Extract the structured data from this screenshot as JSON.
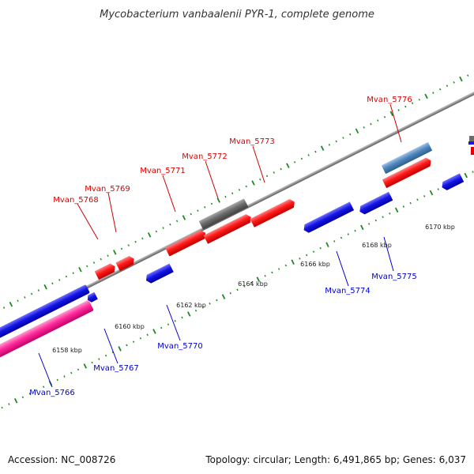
{
  "title": "Mycobacterium vanbaalenii PYR-1, complete genome",
  "footer": {
    "accession": "Accession: NC_008726",
    "summary": "Topology: circular; Length: 6,491,865 bp; Genes: 6,037"
  },
  "colors": {
    "forward_gene": "#ff1a1a",
    "reverse_gene": "#1515e6",
    "rna_gene": "#6c6c6c",
    "highlight_gene": "#4f86bd",
    "cds_track": "#ff2a9a",
    "forward_label": "#dd0000",
    "reverse_label": "#0000cc",
    "tick": "#1e8a1e",
    "backbone": "#8f8f8f"
  },
  "scale_labels": [
    "6158 kbp",
    "6160 kbp",
    "6162 kbp",
    "6164 kbp",
    "6166 kbp",
    "6168 kbp",
    "6170 kbp"
  ],
  "genes_forward": [
    "Mvan_5768",
    "Mvan_5769",
    "Mvan_5771",
    "Mvan_5772",
    "Mvan_5773",
    "Mvan_5776"
  ],
  "genes_reverse": [
    "Mvan_5766",
    "Mvan_5767",
    "Mvan_5770",
    "Mvan_5774",
    "Mvan_5775"
  ]
}
